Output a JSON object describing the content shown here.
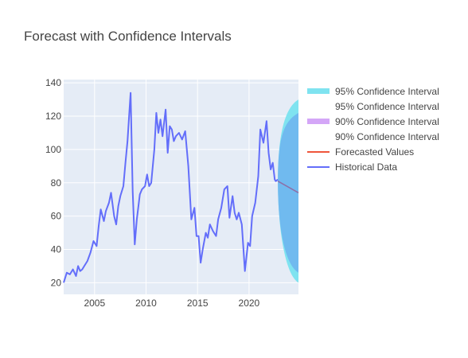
{
  "chart_data": {
    "type": "line",
    "title": "Forecast with Confidence Intervals",
    "xlabel": "",
    "ylabel": "",
    "xlim": [
      2002.0,
      2024.8
    ],
    "ylim": [
      13,
      142
    ],
    "x_ticks": [
      2005,
      2010,
      2015,
      2020
    ],
    "y_ticks": [
      20,
      40,
      60,
      80,
      100,
      120,
      140
    ],
    "grid": true,
    "legend_position": "right",
    "legend": [
      "95% Confidence Interval",
      "95% Confidence Interval",
      "90% Confidence Interval",
      "90% Confidence Interval",
      "Forecasted Values",
      "Historical Data"
    ],
    "historical": {
      "name": "Historical Data",
      "color": "#636efa",
      "x": [
        2002.0,
        2002.3,
        2002.6,
        2002.9,
        2003.2,
        2003.4,
        2003.6,
        2003.8,
        2004.0,
        2004.3,
        2004.6,
        2004.9,
        2005.2,
        2005.4,
        2005.6,
        2005.9,
        2006.1,
        2006.4,
        2006.6,
        2006.9,
        2007.1,
        2007.3,
        2007.5,
        2007.8,
        2008.0,
        2008.2,
        2008.35,
        2008.5,
        2008.7,
        2008.9,
        2009.1,
        2009.4,
        2009.6,
        2009.9,
        2010.1,
        2010.3,
        2010.5,
        2010.8,
        2011.0,
        2011.2,
        2011.4,
        2011.6,
        2011.9,
        2012.1,
        2012.3,
        2012.5,
        2012.7,
        2012.9,
        2013.2,
        2013.5,
        2013.8,
        2014.1,
        2014.4,
        2014.7,
        2014.9,
        2015.1,
        2015.3,
        2015.5,
        2015.8,
        2016.0,
        2016.2,
        2016.5,
        2016.8,
        2017.0,
        2017.3,
        2017.6,
        2017.9,
        2018.1,
        2018.4,
        2018.6,
        2018.8,
        2019.0,
        2019.3,
        2019.6,
        2019.9,
        2020.1,
        2020.3,
        2020.6,
        2020.9,
        2021.1,
        2021.4,
        2021.7,
        2021.9,
        2022.1,
        2022.3,
        2022.5,
        2022.6,
        2022.8
      ],
      "values": [
        20,
        26,
        25,
        28,
        24,
        30,
        27,
        28,
        30,
        33,
        38,
        45,
        42,
        54,
        64,
        57,
        63,
        68,
        74,
        60,
        55,
        66,
        72,
        78,
        92,
        105,
        120,
        134,
        75,
        43,
        58,
        73,
        76,
        78,
        85,
        78,
        80,
        100,
        122,
        110,
        118,
        108,
        124,
        98,
        114,
        112,
        105,
        108,
        110,
        106,
        111,
        90,
        58,
        65,
        48,
        48,
        32,
        40,
        50,
        47,
        55,
        51,
        48,
        58,
        65,
        76,
        78,
        59,
        72,
        62,
        58,
        62,
        55,
        27,
        44,
        42,
        60,
        68,
        84,
        112,
        104,
        117,
        98,
        88,
        92,
        82,
        81,
        82
      ],
      "annotation": null
    },
    "forecast": {
      "name": "Forecasted Values",
      "color": "#ef553b",
      "x": [
        2022.8,
        2024.8
      ],
      "values": [
        81,
        74
      ]
    },
    "ci95": {
      "name": "95% Confidence Interval",
      "color": "#7fe3f0",
      "x_start": 2022.8,
      "x_end": 2024.8,
      "lower_end": 20,
      "upper_end": 130
    },
    "ci90": {
      "name": "90% Confidence Interval",
      "color": "#d4a6f7",
      "x_start": 2022.8,
      "x_end": 2024.8,
      "lower_end": 26,
      "upper_end": 122
    },
    "ci_fill_color": "#6fb6ef"
  }
}
